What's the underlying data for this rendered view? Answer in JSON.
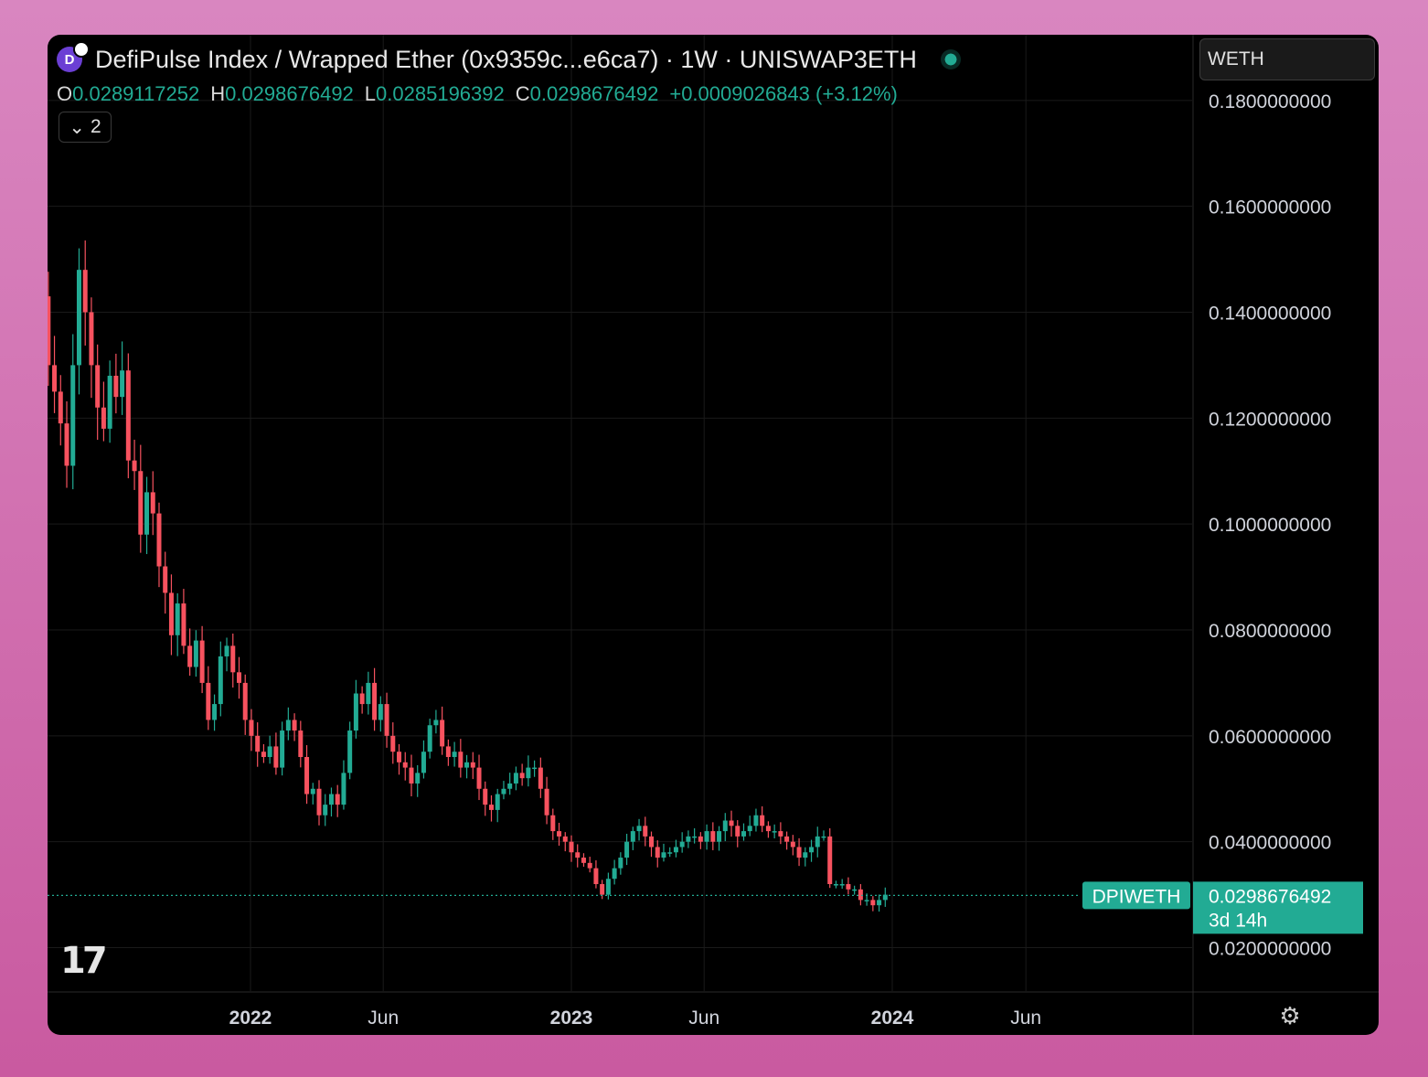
{
  "header": {
    "logo_letter": "D",
    "title": "DefiPulse Index / Wrapped Ether (0x9359c...e6ca7) · 1W · UNISWAP3ETH",
    "ohlc": [
      {
        "key": "O",
        "value": "0.0289117252"
      },
      {
        "key": "H",
        "value": "0.0298676492"
      },
      {
        "key": "L",
        "value": "0.0285196392"
      },
      {
        "key": "C",
        "value": "0.0298676492"
      }
    ],
    "change": "+0.0009026843 (+3.12%)",
    "indicators_count": "2",
    "currency": "WETH"
  },
  "price_tag": {
    "symbol": "DPIWETH",
    "value": "0.0298676492",
    "countdown": "3d 14h"
  },
  "colors": {
    "up": "#22ab94",
    "down": "#f7525f",
    "grid": "#1a1a1a",
    "axis_text": "#d1d4dc"
  },
  "icons": {
    "tradingview": "tradingview-logo-icon",
    "settings": "gear-icon",
    "collapse": "chevron-down-icon"
  },
  "chart_data": {
    "type": "candlestick",
    "interval": "1W",
    "y_ticks": [
      "0.1800000000",
      "0.1600000000",
      "0.1400000000",
      "0.1200000000",
      "0.1000000000",
      "0.0800000000",
      "0.0600000000",
      "0.0400000000",
      "0.0200000000"
    ],
    "ylim": [
      0.0118,
      0.1924
    ],
    "x_ticks": [
      {
        "label": "2022",
        "date": "2022-01-01",
        "bold": true
      },
      {
        "label": "Jun",
        "date": "2022-06-01",
        "bold": false
      },
      {
        "label": "2023",
        "date": "2023-01-01",
        "bold": true
      },
      {
        "label": "Jun",
        "date": "2023-06-01",
        "bold": false
      },
      {
        "label": "2024",
        "date": "2024-01-01",
        "bold": true
      },
      {
        "label": "Jun",
        "date": "2024-06-01",
        "bold": false
      }
    ],
    "start_date": "2021-04-18",
    "last_price": 0.0298676492,
    "closes": [
      0.135,
      0.142,
      0.15,
      0.143,
      0.13,
      0.125,
      0.119,
      0.111,
      0.13,
      0.148,
      0.14,
      0.13,
      0.122,
      0.118,
      0.128,
      0.124,
      0.129,
      0.112,
      0.11,
      0.098,
      0.106,
      0.102,
      0.092,
      0.087,
      0.079,
      0.085,
      0.077,
      0.073,
      0.078,
      0.07,
      0.063,
      0.066,
      0.075,
      0.077,
      0.072,
      0.07,
      0.063,
      0.06,
      0.057,
      0.056,
      0.058,
      0.054,
      0.061,
      0.063,
      0.061,
      0.056,
      0.049,
      0.05,
      0.045,
      0.047,
      0.049,
      0.047,
      0.053,
      0.061,
      0.068,
      0.066,
      0.07,
      0.063,
      0.066,
      0.06,
      0.057,
      0.055,
      0.054,
      0.051,
      0.053,
      0.057,
      0.062,
      0.063,
      0.058,
      0.056,
      0.057,
      0.054,
      0.055,
      0.054,
      0.05,
      0.047,
      0.046,
      0.049,
      0.05,
      0.051,
      0.053,
      0.052,
      0.054,
      0.054,
      0.05,
      0.045,
      0.042,
      0.041,
      0.04,
      0.038,
      0.037,
      0.036,
      0.035,
      0.032,
      0.03,
      0.033,
      0.035,
      0.037,
      0.04,
      0.042,
      0.043,
      0.041,
      0.039,
      0.037,
      0.038,
      0.038,
      0.039,
      0.04,
      0.041,
      0.041,
      0.04,
      0.042,
      0.04,
      0.042,
      0.044,
      0.043,
      0.041,
      0.042,
      0.043,
      0.045,
      0.043,
      0.042,
      0.042,
      0.041,
      0.04,
      0.039,
      0.037,
      0.038,
      0.039,
      0.041,
      0.041,
      0.032,
      0.032,
      0.032,
      0.031,
      0.031,
      0.029,
      0.029,
      0.028,
      0.029,
      0.03
    ]
  }
}
